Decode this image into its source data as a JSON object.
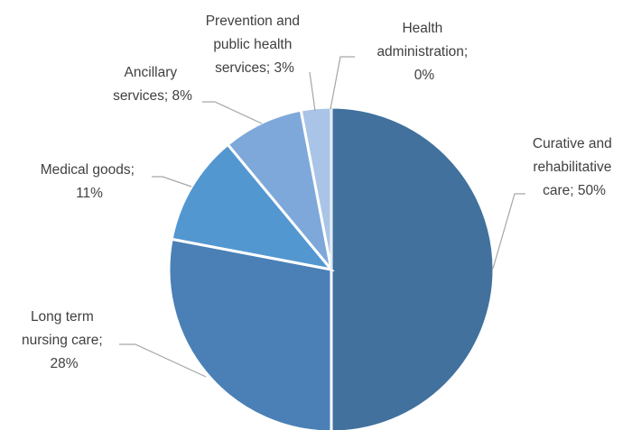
{
  "chart_data": {
    "type": "pie",
    "title": "",
    "categories": [
      "Curative and rehabilitative care",
      "Long term nursing care",
      "Medical goods",
      "Ancillary services",
      "Prevention and public health services",
      "Health administration"
    ],
    "values": [
      50,
      28,
      11,
      8,
      3,
      0
    ],
    "data_labels": [
      [
        "Curative and",
        "rehabilitative",
        "care; 50%"
      ],
      [
        "Long term",
        "nursing care;",
        "28%"
      ],
      [
        "Medical goods;",
        "11%"
      ],
      [
        "Ancillary",
        "services; 8%"
      ],
      [
        "Prevention and",
        "public health",
        "services; 3%"
      ],
      [
        "Health",
        "administration;",
        "0%"
      ]
    ],
    "colors": [
      "#41719c",
      "#4a80b6",
      "#5397d1",
      "#7ea8d9",
      "#a9c4e6",
      "#c9d9ef"
    ],
    "legend": "none",
    "start_angle": "12 o'clock",
    "direction": "clockwise"
  }
}
